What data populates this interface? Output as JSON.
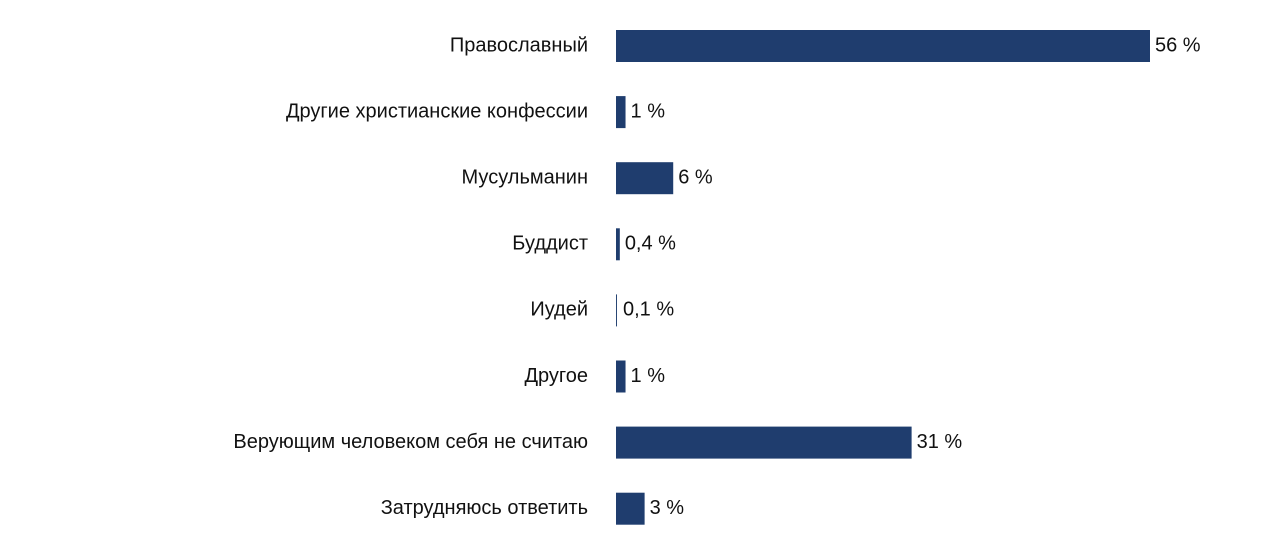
{
  "chart_data": {
    "type": "hbar",
    "categories": [
      "Православный",
      "Другие христианские конфессии",
      "Мусульманин",
      "Буддист",
      "Иудей",
      "Другое",
      "Верующим человеком себя не считаю",
      "Затрудняюсь ответить"
    ],
    "values": [
      56,
      1,
      6,
      0.4,
      0.1,
      1,
      31,
      3
    ],
    "value_labels": [
      "56 %",
      "1 %",
      "6 %",
      "0,4 %",
      "0,1 %",
      "1 %",
      "31 %",
      "3 %"
    ],
    "color": "#1f3d6e"
  }
}
